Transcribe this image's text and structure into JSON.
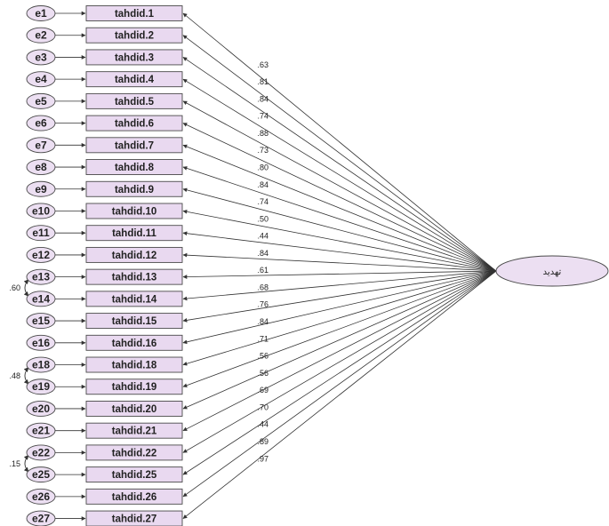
{
  "latent": {
    "label": "تهدید"
  },
  "indicators": [
    {
      "error": "e1",
      "name": "tahdid.1",
      "loading": ".63"
    },
    {
      "error": "e2",
      "name": "tahdid.2",
      "loading": ".81"
    },
    {
      "error": "e3",
      "name": "tahdid.3",
      "loading": ".84"
    },
    {
      "error": "e4",
      "name": "tahdid.4",
      "loading": ".74"
    },
    {
      "error": "e5",
      "name": "tahdid.5",
      "loading": ".88"
    },
    {
      "error": "e6",
      "name": "tahdid.6",
      "loading": ".73"
    },
    {
      "error": "e7",
      "name": "tahdid.7",
      "loading": ".80"
    },
    {
      "error": "e8",
      "name": "tahdid.8",
      "loading": ".84"
    },
    {
      "error": "e9",
      "name": "tahdid.9",
      "loading": ".74"
    },
    {
      "error": "e10",
      "name": "tahdid.10",
      "loading": ".50"
    },
    {
      "error": "e11",
      "name": "tahdid.11",
      "loading": ".44"
    },
    {
      "error": "e12",
      "name": "tahdid.12",
      "loading": ".84"
    },
    {
      "error": "e13",
      "name": "tahdid.13",
      "loading": ".61"
    },
    {
      "error": "e14",
      "name": "tahdid.14",
      "loading": ".68"
    },
    {
      "error": "e15",
      "name": "tahdid.15",
      "loading": ".76"
    },
    {
      "error": "e16",
      "name": "tahdid.16",
      "loading": ".84"
    },
    {
      "error": "e18",
      "name": "tahdid.18",
      "loading": ".71"
    },
    {
      "error": "e19",
      "name": "tahdid.19",
      "loading": ".56"
    },
    {
      "error": "e20",
      "name": "tahdid.20",
      "loading": ".56"
    },
    {
      "error": "e21",
      "name": "tahdid.21",
      "loading": ".69"
    },
    {
      "error": "e22",
      "name": "tahdid.22",
      "loading": ".70"
    },
    {
      "error": "e25",
      "name": "tahdid.25",
      "loading": ".44"
    },
    {
      "error": "e26",
      "name": "tahdid.26",
      "loading": ".89"
    },
    {
      "error": "e27",
      "name": "tahdid.27",
      "loading": ".97"
    }
  ],
  "covariances": [
    {
      "from": "e13",
      "to": "e14",
      "value": ".60"
    },
    {
      "from": "e18",
      "to": "e19",
      "value": ".48"
    },
    {
      "from": "e22",
      "to": "e25",
      "value": ".15"
    }
  ],
  "colors": {
    "node_fill": "#e9d9f0",
    "stroke": "#4a4a4a",
    "text": "#222222"
  }
}
